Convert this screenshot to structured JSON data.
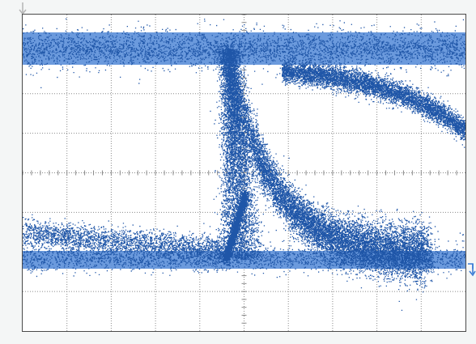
{
  "scope": {
    "colors": {
      "background": "#ffffff",
      "page": "#f4f6f6",
      "grid": "#8a8a8a",
      "frame": "#4a4a4a",
      "trace_dark": "#1f56a8",
      "trace_light": "#5b8fd9",
      "marker": "#3a7bd5",
      "trigger_marker": "#b5b5b5"
    },
    "icons": {
      "trigger": "trigger-position-icon",
      "ground": "ground-reference-icon"
    },
    "divisions": {
      "horizontal": 10,
      "vertical": 8
    },
    "display": "eye-diagram"
  }
}
